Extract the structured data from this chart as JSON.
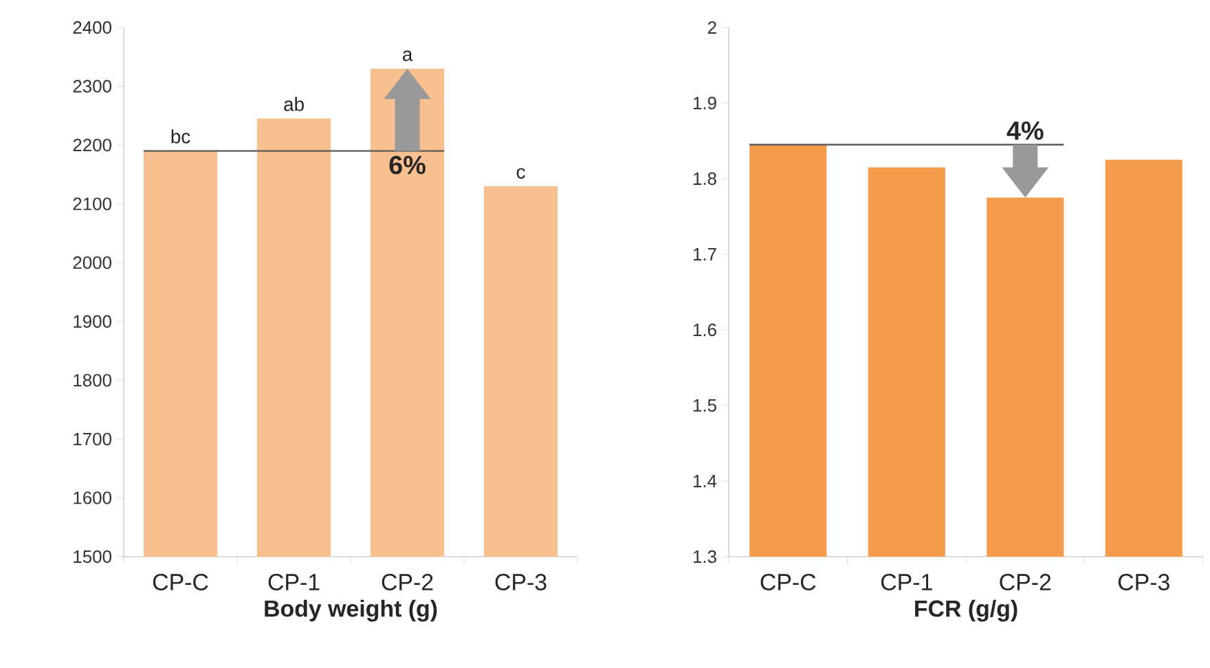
{
  "chart_data": [
    {
      "type": "bar",
      "xlabel": "Body weight (g)",
      "categories": [
        "CP-C",
        "CP-1",
        "CP-2",
        "CP-3"
      ],
      "values": [
        2190,
        2245,
        2330,
        2130
      ],
      "color": "#f9c08f",
      "ylim": [
        1500,
        2400
      ],
      "yticks": [
        1500,
        1600,
        1700,
        1800,
        1900,
        2000,
        2100,
        2200,
        2300,
        2400
      ],
      "grid": false,
      "ref_lines": [
        {
          "axis": "y",
          "value": 2190,
          "color": "#595959"
        }
      ],
      "annotations": [
        {
          "text": "bc",
          "x": "CP-C",
          "y": 2190
        },
        {
          "text": "ab",
          "x": "CP-1",
          "y": 2245
        },
        {
          "text": "a",
          "x": "CP-2",
          "y": 2330
        },
        {
          "text": "c",
          "x": "CP-3",
          "y": 2130
        },
        {
          "text": "6%",
          "x": "CP-2",
          "y": 2190
        }
      ]
    },
    {
      "type": "bar",
      "xlabel": "FCR (g/g)",
      "categories": [
        "CP-C",
        "CP-1",
        "CP-2",
        "CP-3"
      ],
      "values": [
        1.845,
        1.815,
        1.775,
        1.825
      ],
      "color": "#f59b4c",
      "ylim": [
        1.3,
        2
      ],
      "yticks": [
        1.3,
        1.4,
        1.5,
        1.6,
        1.7,
        1.8,
        1.9,
        2
      ],
      "grid": false,
      "ref_lines": [
        {
          "axis": "y",
          "value": 1.845,
          "color": "#595959"
        }
      ],
      "annotations": [
        {
          "text": "4%",
          "x": "CP-2",
          "y": 1.845
        }
      ]
    }
  ]
}
